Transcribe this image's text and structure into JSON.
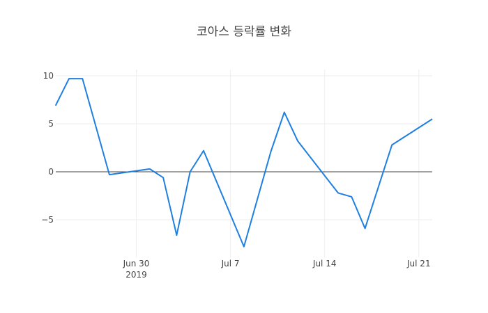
{
  "chart_data": {
    "type": "line",
    "title": "코아스 등락률 변화",
    "xlabel": "",
    "ylabel": "",
    "x": [
      "2019-06-24",
      "2019-06-25",
      "2019-06-26",
      "2019-06-28",
      "2019-07-01",
      "2019-07-02",
      "2019-07-03",
      "2019-07-04",
      "2019-07-05",
      "2019-07-08",
      "2019-07-10",
      "2019-07-11",
      "2019-07-12",
      "2019-07-15",
      "2019-07-16",
      "2019-07-17",
      "2019-07-19",
      "2019-07-22"
    ],
    "series": [
      {
        "name": "등락률",
        "color": "#1f7fe0",
        "values": [
          6.9,
          9.7,
          9.7,
          -0.3,
          0.3,
          -0.6,
          -6.6,
          0.0,
          2.2,
          -7.8,
          2.1,
          6.2,
          3.2,
          -2.2,
          -2.6,
          -5.9,
          2.8,
          5.5
        ]
      }
    ],
    "x_ticks": [
      {
        "label": "Jun 30",
        "sublabel": "2019",
        "date": "2019-06-30"
      },
      {
        "label": "Jul 7",
        "date": "2019-07-07"
      },
      {
        "label": "Jul 14",
        "date": "2019-07-14"
      },
      {
        "label": "Jul 21",
        "date": "2019-07-21"
      }
    ],
    "y_ticks": [
      10,
      5,
      0,
      -5
    ],
    "y_tick_labels": [
      "10",
      "5",
      "0",
      "−5"
    ],
    "xlim": [
      "2019-06-24",
      "2019-07-22"
    ],
    "ylim": [
      -8.5,
      11
    ],
    "grid": true,
    "zeroline": true,
    "legend": "none"
  }
}
